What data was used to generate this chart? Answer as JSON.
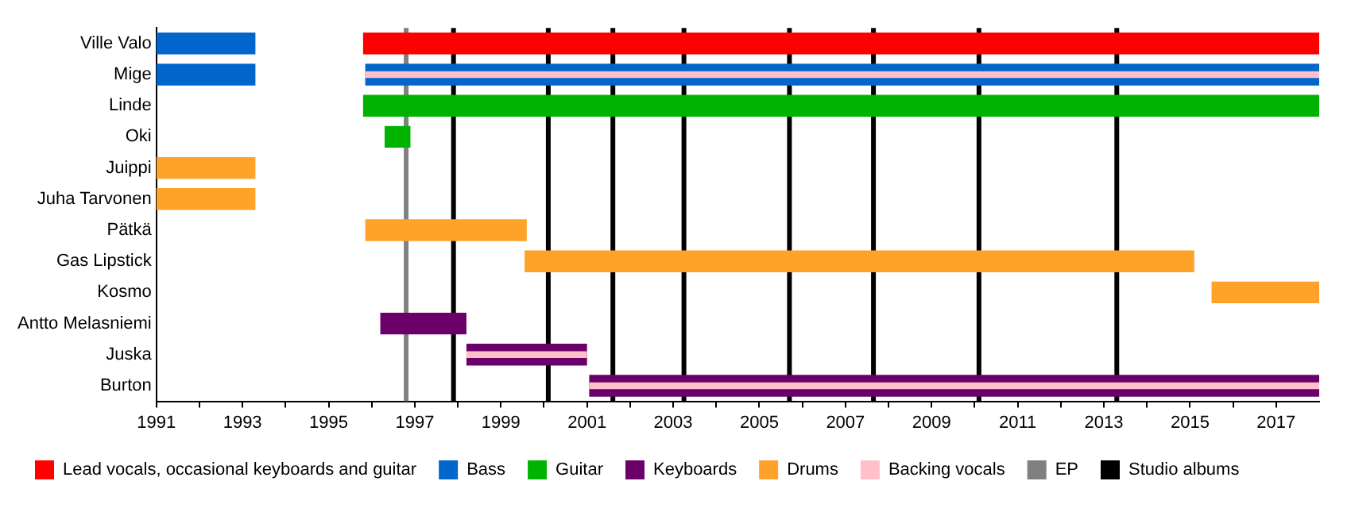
{
  "chart_data": {
    "type": "bar",
    "orientation": "horizontal",
    "categories": [
      "Ville Valo",
      "Mige",
      "Linde",
      "Oki",
      "Juippi",
      "Juha Tarvonen",
      "Pätkä",
      "Gas Lipstick",
      "Kosmo",
      "Antto Melasniemi",
      "Juska",
      "Burton"
    ],
    "series": [
      {
        "name": "Lead vocals, occasional keyboards and guitar",
        "color": "#ff0000",
        "base": [
          1995.8,
          null,
          null,
          null,
          null,
          null,
          null,
          null,
          null,
          null,
          null,
          null
        ],
        "values": [
          22.2,
          null,
          null,
          null,
          null,
          null,
          null,
          null,
          null,
          null,
          null,
          null
        ]
      },
      {
        "name": "Bass",
        "color": "#0066cc",
        "base": [
          1991,
          1991,
          null,
          null,
          null,
          null,
          null,
          null,
          null,
          null,
          null,
          null
        ],
        "values": [
          2.3,
          2.3,
          null,
          null,
          null,
          null,
          null,
          null,
          null,
          null,
          null,
          null
        ]
      },
      {
        "color": "#0066cc",
        "base": [
          null,
          1995.85,
          null,
          null,
          null,
          null,
          null,
          null,
          null,
          null,
          null,
          null
        ],
        "values": [
          null,
          22.15,
          null,
          null,
          null,
          null,
          null,
          null,
          null,
          null,
          null,
          null
        ]
      },
      {
        "name": "Guitar",
        "color": "#00b300",
        "base": [
          null,
          null,
          1995.8,
          1996.3,
          null,
          null,
          null,
          null,
          null,
          null,
          null,
          null
        ],
        "values": [
          null,
          null,
          22.2,
          0.6,
          null,
          null,
          null,
          null,
          null,
          null,
          null,
          null
        ]
      },
      {
        "name": "Keyboards",
        "color": "#6b006b",
        "base": [
          null,
          null,
          null,
          null,
          null,
          null,
          null,
          null,
          null,
          1996.2,
          1998.2,
          2001.05
        ],
        "values": [
          null,
          null,
          null,
          null,
          null,
          null,
          null,
          null,
          null,
          2.0,
          2.8,
          16.95
        ]
      },
      {
        "name": "Drums",
        "color": "#ffa229",
        "base": [
          null,
          null,
          null,
          null,
          1991,
          1991,
          1995.85,
          1999.55,
          2015.5,
          null,
          null,
          null
        ],
        "values": [
          null,
          null,
          null,
          null,
          2.3,
          2.3,
          3.75,
          15.55,
          2.5,
          null,
          null,
          null
        ]
      },
      {
        "name": "Backing vocals",
        "color": "#ffc0cb",
        "base": [
          null,
          1995.85,
          null,
          null,
          null,
          null,
          null,
          null,
          null,
          null,
          1998.2,
          2001.05
        ],
        "values": [
          null,
          22.15,
          null,
          null,
          null,
          null,
          null,
          null,
          null,
          null,
          2.8,
          16.95
        ]
      }
    ],
    "xlim": [
      1991,
      2018
    ],
    "xticks": [
      1991,
      {
        "value": 1992,
        "label": null
      },
      1993,
      {
        "value": 1994,
        "label": null
      },
      1995,
      {
        "value": 1996,
        "label": null
      },
      1997,
      {
        "value": 1998,
        "label": null
      },
      1999,
      {
        "value": 2000,
        "label": null
      },
      2001,
      {
        "value": 2002,
        "label": null
      },
      2003,
      {
        "value": 2004,
        "label": null
      },
      2005,
      {
        "value": 2006,
        "label": null
      },
      2007,
      {
        "value": 2008,
        "label": null
      },
      2009,
      {
        "value": 2010,
        "label": null
      },
      2011,
      {
        "value": 2012,
        "label": null
      },
      2013,
      {
        "value": 2014,
        "label": null
      },
      2015,
      {
        "value": 2016,
        "label": null
      },
      2017
    ],
    "ref_lines": [
      {
        "axis": "x",
        "value": 1996.8,
        "label": "EP",
        "color": "#808080"
      },
      {
        "axis": "x",
        "value": 1997.9,
        "label": "Studio albums",
        "color": "#000000"
      },
      {
        "axis": "x",
        "value": 2000.1,
        "color": "#000000"
      },
      {
        "axis": "x",
        "value": 2001.6,
        "color": "#000000"
      },
      {
        "axis": "x",
        "value": 2003.25,
        "color": "#000000"
      },
      {
        "axis": "x",
        "value": 2005.7,
        "color": "#000000"
      },
      {
        "axis": "x",
        "value": 2007.65,
        "color": "#000000"
      },
      {
        "axis": "x",
        "value": 2010.1,
        "color": "#000000"
      },
      {
        "axis": "x",
        "value": 2013.3,
        "color": "#000000"
      }
    ],
    "grid": false,
    "legend": "bottom"
  }
}
